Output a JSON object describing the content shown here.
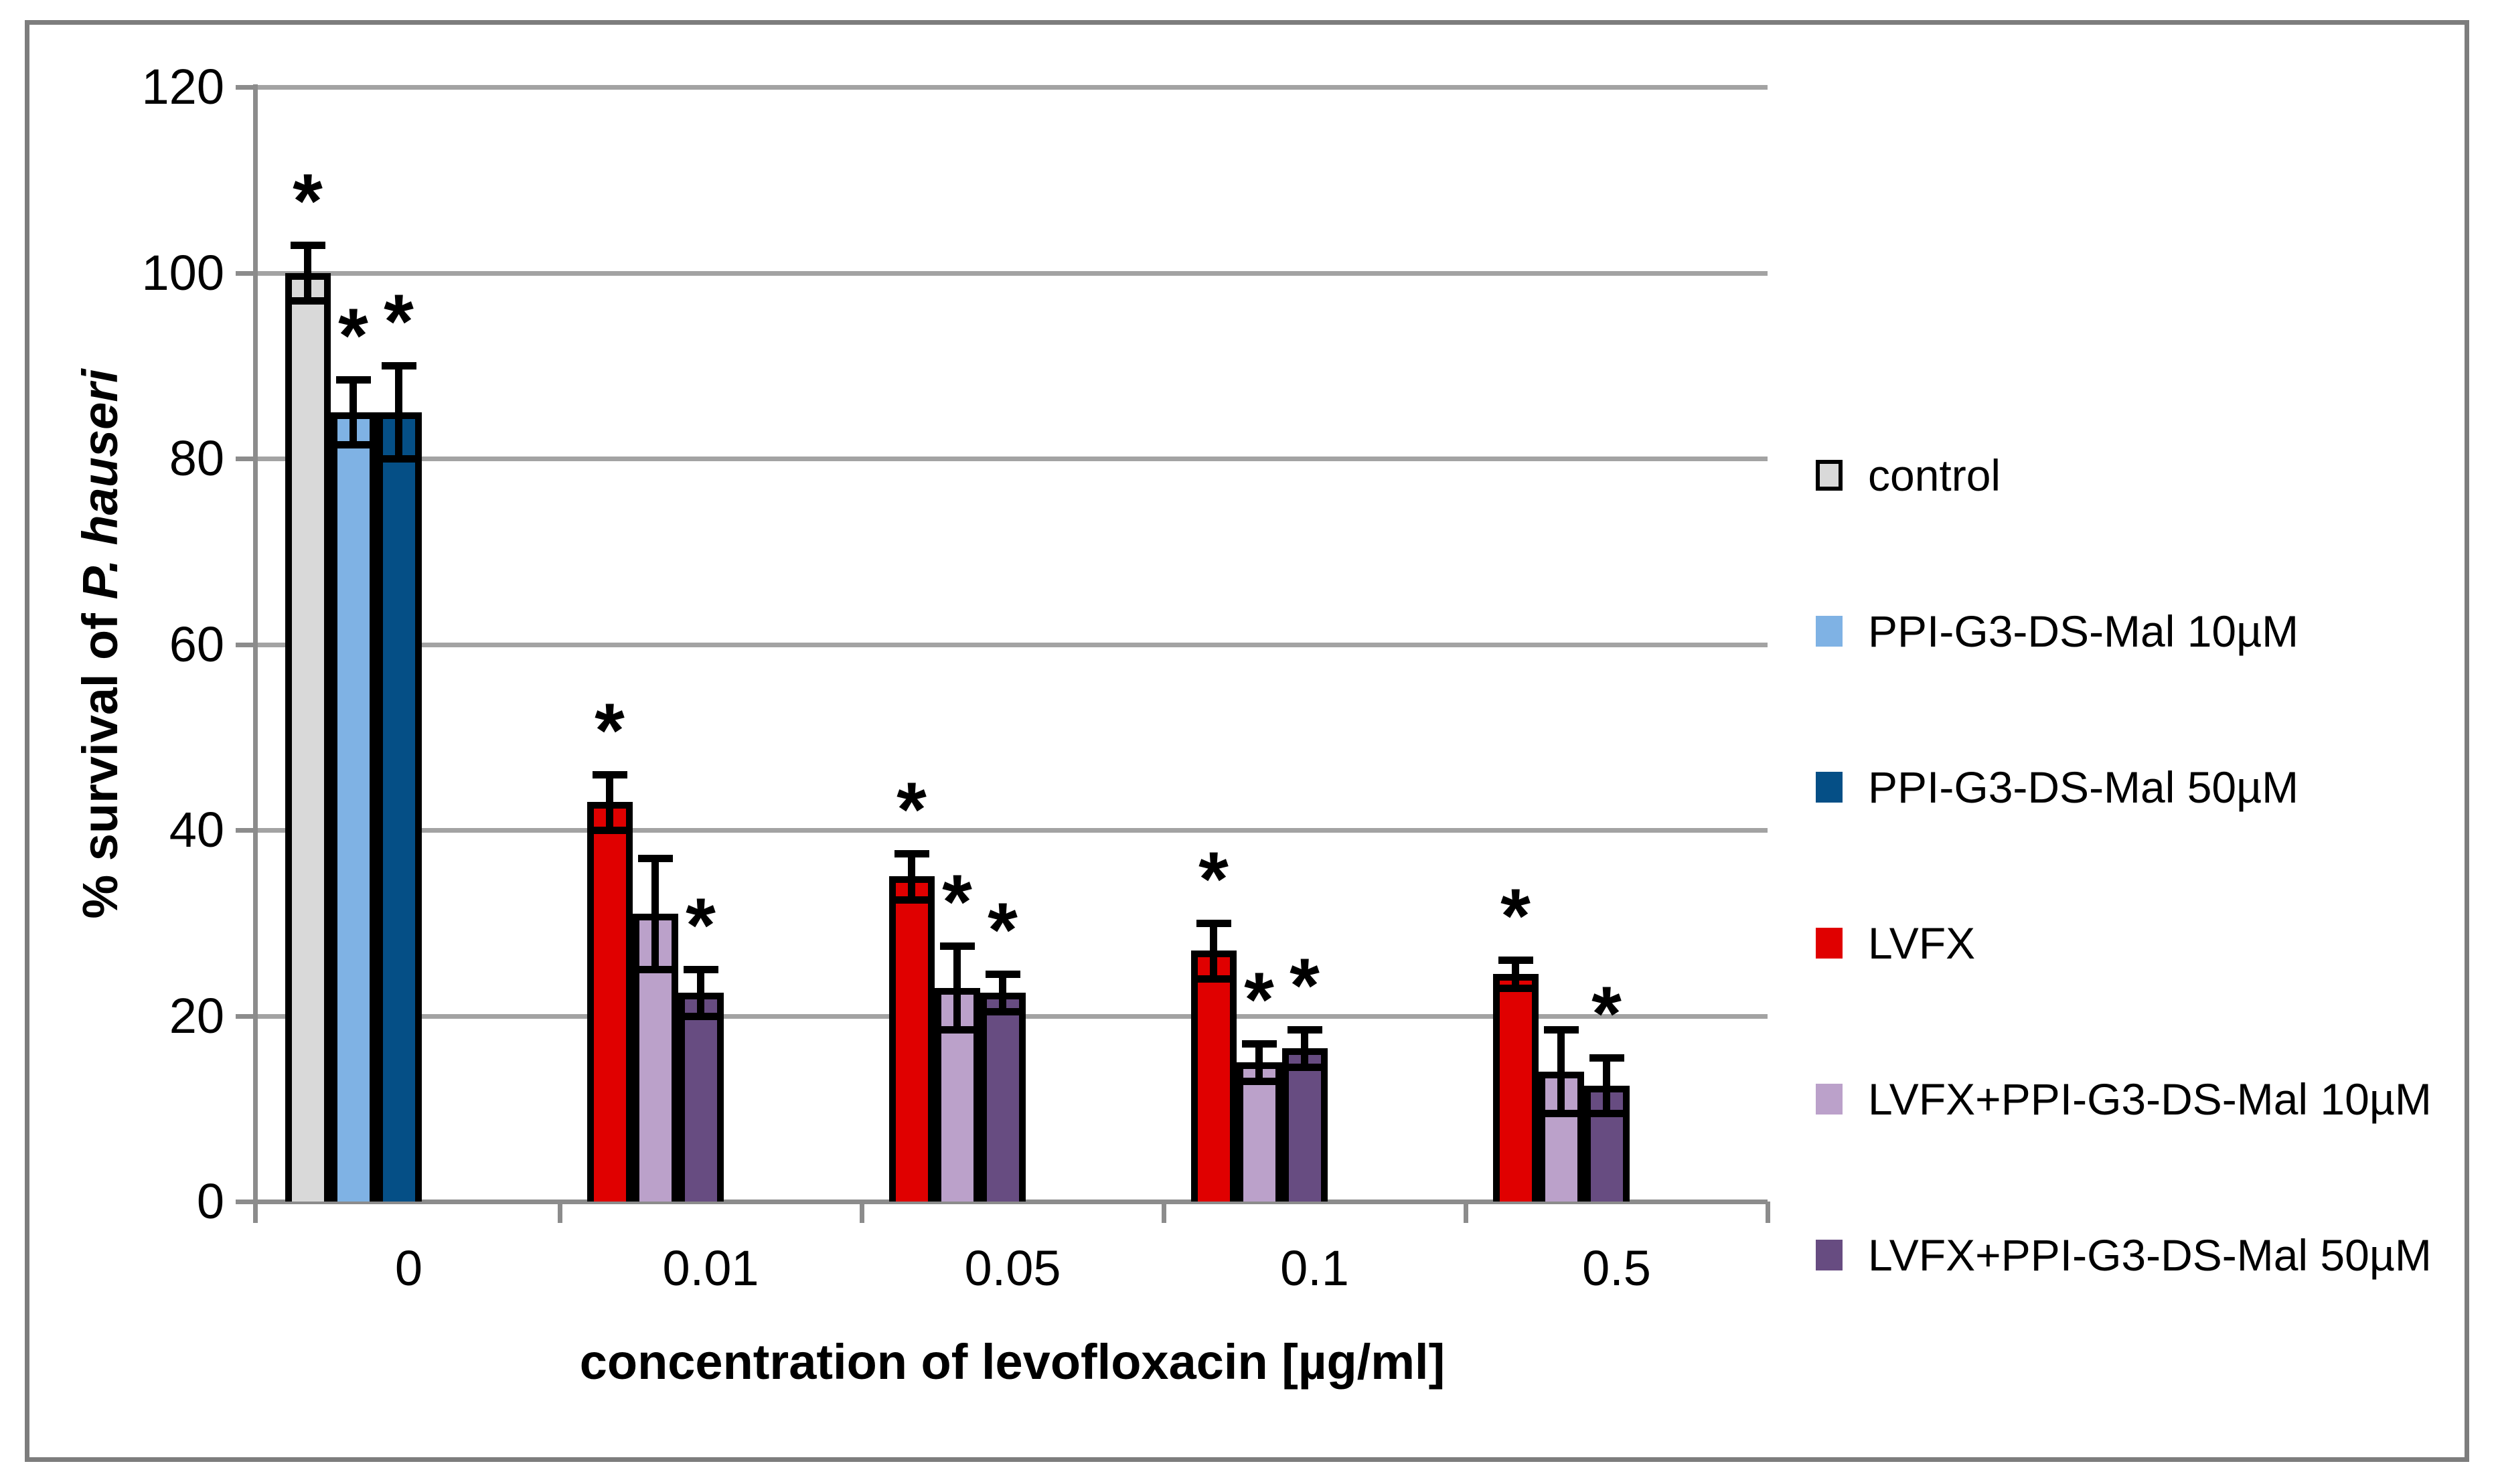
{
  "figure": {
    "background": "#FFFFFF",
    "border_color": "#7D7D7D",
    "gridline_color": "#A3A3A3",
    "axis_color": "#8C8C8C",
    "text_color": "#000000",
    "error_bar_color": "#000000",
    "significance_marker": "*"
  },
  "axes": {
    "y_title_prefix": "% survival of ",
    "y_title_species": "P. hauseri",
    "x_title": "concentration of levofloxacin [µg/ml]"
  },
  "chart_data": {
    "type": "bar",
    "title": "",
    "xlabel": "concentration of levofloxacin [µg/ml]",
    "ylabel": "% survival of P. hauseri",
    "ylim": [
      0,
      120
    ],
    "y_ticks": [
      0,
      20,
      40,
      60,
      80,
      100,
      120
    ],
    "categories": [
      "0",
      "0.01",
      "0.05",
      "0.1",
      "0.5"
    ],
    "grid": "horizontal",
    "legend_position": "right",
    "series": [
      {
        "name": "control",
        "color": "#D9D9D9",
        "swatch_border": true,
        "values": [
          100,
          null,
          null,
          null,
          null
        ],
        "errors": [
          3,
          null,
          null,
          null,
          null
        ],
        "significant": [
          true,
          false,
          false,
          false,
          false
        ]
      },
      {
        "name": "PPI-G3-DS-Mal 10µM",
        "color": "#7FB2E4",
        "swatch_border": false,
        "values": [
          85,
          null,
          null,
          null,
          null
        ],
        "errors": [
          3.5,
          null,
          null,
          null,
          null
        ],
        "significant": [
          true,
          false,
          false,
          false,
          false
        ]
      },
      {
        "name": "PPI-G3-DS-Mal 50µM",
        "color": "#054F86",
        "swatch_border": false,
        "values": [
          85,
          null,
          null,
          null,
          null
        ],
        "errors": [
          5,
          null,
          null,
          null,
          null
        ],
        "significant": [
          true,
          false,
          false,
          false,
          false
        ]
      },
      {
        "name": "LVFX",
        "color": "#E00000",
        "swatch_border": false,
        "values": [
          null,
          43,
          35,
          27,
          24.5
        ],
        "errors": [
          null,
          3,
          2.5,
          3,
          1.5
        ],
        "significant": [
          false,
          true,
          true,
          true,
          true
        ]
      },
      {
        "name": "LVFX+PPI-G3-DS-Mal 10µM",
        "color": "#BBA1CA",
        "swatch_border": false,
        "values": [
          null,
          31,
          23,
          15,
          14
        ],
        "errors": [
          null,
          6,
          4.5,
          2,
          4.5
        ],
        "significant": [
          false,
          false,
          true,
          true,
          false
        ]
      },
      {
        "name": "LVFX+PPI-G3-DS-Mal 50µM",
        "color": "#674C81",
        "swatch_border": false,
        "values": [
          null,
          22.5,
          22.5,
          16.5,
          12.5
        ],
        "errors": [
          null,
          2.5,
          2,
          2,
          3
        ],
        "significant": [
          false,
          true,
          true,
          true,
          true
        ]
      }
    ]
  }
}
